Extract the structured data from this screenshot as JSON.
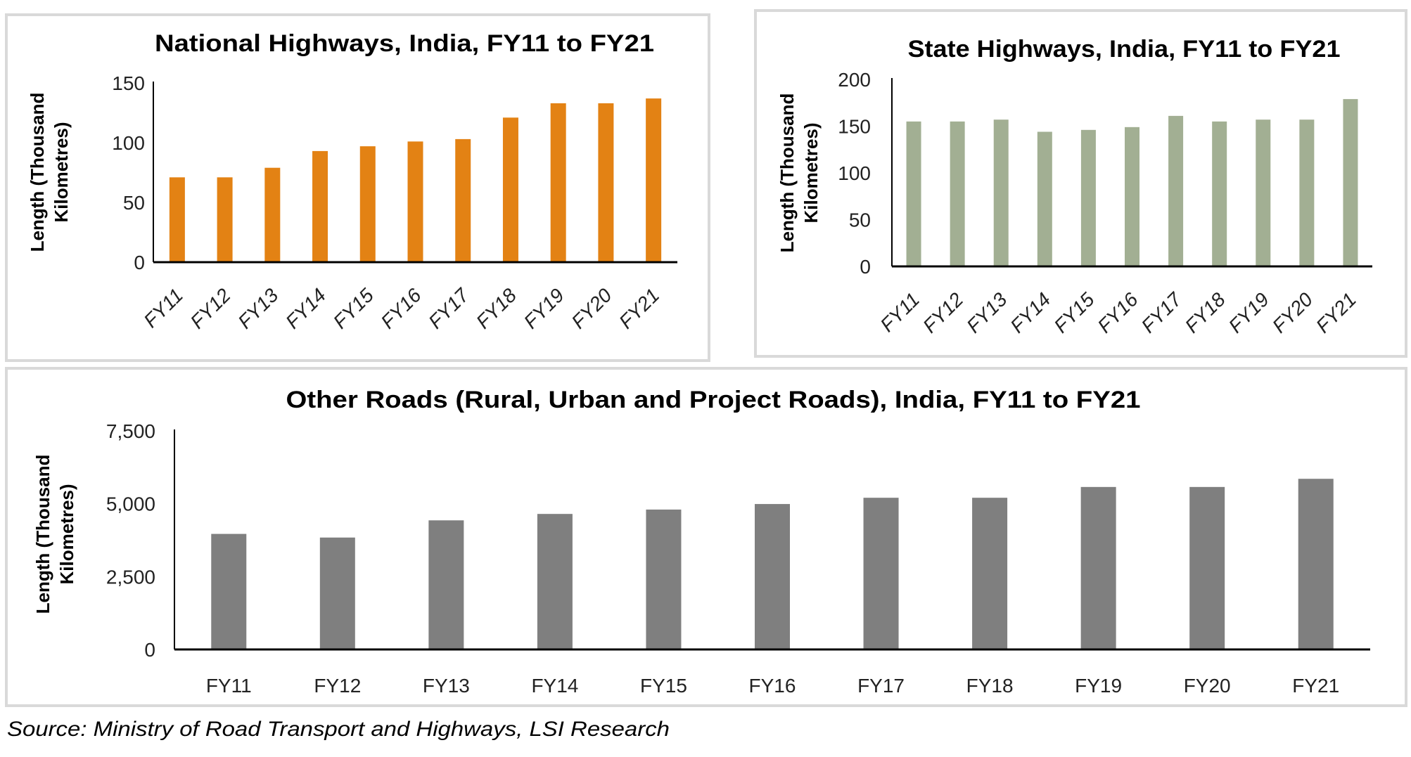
{
  "source": "Source: Ministry of Road Transport and Highways, LSI Research",
  "chart_data": [
    {
      "type": "bar",
      "title": "National Highways, India, FY11 to FY21",
      "xlabel": "",
      "ylabel_lines": [
        "Length (Thousand",
        "Kilometres)"
      ],
      "categories": [
        "FY11",
        "FY12",
        "FY13",
        "FY14",
        "FY15",
        "FY16",
        "FY17",
        "FY18",
        "FY19",
        "FY20",
        "FY21"
      ],
      "values": [
        71,
        71,
        79,
        93,
        97,
        101,
        103,
        121,
        133,
        133,
        137
      ],
      "ylim": [
        0,
        150
      ],
      "yticks": [
        0,
        50,
        100,
        150
      ],
      "ytick_labels": [
        "0",
        "50",
        "100",
        "150"
      ],
      "grid": false,
      "color": "#e38214",
      "xtick_rotation": "diagonal"
    },
    {
      "type": "bar",
      "title": "State Highways, India, FY11 to FY21",
      "xlabel": "",
      "ylabel_lines": [
        "Length (Thousand",
        "Kilometres)"
      ],
      "categories": [
        "FY11",
        "FY12",
        "FY13",
        "FY14",
        "FY15",
        "FY16",
        "FY17",
        "FY18",
        "FY19",
        "FY20",
        "FY21"
      ],
      "values": [
        155,
        155,
        157,
        144,
        146,
        149,
        161,
        155,
        157,
        157,
        179
      ],
      "ylim": [
        0,
        200
      ],
      "yticks": [
        0,
        50,
        100,
        150,
        200
      ],
      "ytick_labels": [
        "0",
        "50",
        "100",
        "150",
        "200"
      ],
      "grid": false,
      "color": "#a2af93",
      "xtick_rotation": "diagonal"
    },
    {
      "type": "bar",
      "title": "Other Roads (Rural,  Urban and Project Roads), India, FY11 to FY21",
      "xlabel": "",
      "ylabel_lines": [
        "Length (Thousand",
        "Kilometres)"
      ],
      "categories": [
        "FY11",
        "FY12",
        "FY13",
        "FY14",
        "FY15",
        "FY16",
        "FY17",
        "FY18",
        "FY19",
        "FY20",
        "FY21"
      ],
      "values": [
        3965,
        3840,
        4430,
        4650,
        4800,
        4990,
        5205,
        5205,
        5575,
        5575,
        5855
      ],
      "ylim": [
        0,
        7500
      ],
      "yticks": [
        0,
        2500,
        5000,
        7500
      ],
      "ytick_labels": [
        "0",
        "2,500",
        "5,000",
        "7,500"
      ],
      "grid": false,
      "color": "#7f7f7f",
      "xtick_rotation": "horizontal"
    }
  ]
}
